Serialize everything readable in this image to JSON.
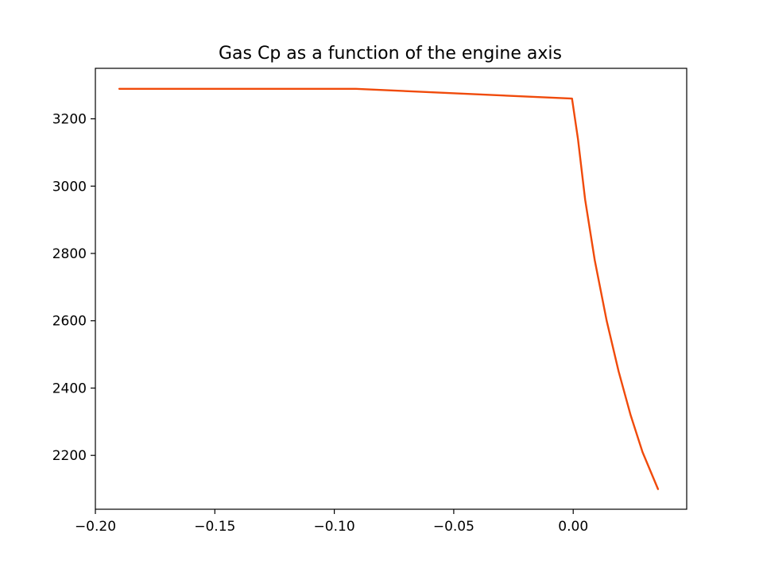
{
  "chart_data": {
    "type": "line",
    "title": "Gas Cp as a function of the engine axis",
    "xlabel": "",
    "ylabel": "",
    "xlim": [
      -0.2,
      0.0475
    ],
    "ylim": [
      2040,
      3350
    ],
    "xticks": [
      -0.2,
      -0.15,
      -0.1,
      -0.05,
      0.0
    ],
    "xtick_labels": [
      "−0.20",
      "−0.15",
      "−0.10",
      "−0.05",
      "0.00"
    ],
    "yticks": [
      2200,
      2400,
      2600,
      2800,
      3000,
      3200
    ],
    "ytick_labels": [
      "2200",
      "2400",
      "2600",
      "2800",
      "3000",
      "3200"
    ],
    "grid": false,
    "legend": "none",
    "series": [
      {
        "color": "#f04a0a",
        "x": [
          -0.19,
          -0.091,
          -0.0005,
          0.002,
          0.005,
          0.009,
          0.014,
          0.019,
          0.024,
          0.029,
          0.0355
        ],
        "y": [
          3289,
          3289,
          3260,
          3140,
          2960,
          2780,
          2600,
          2450,
          2320,
          2210,
          2100
        ]
      }
    ]
  }
}
